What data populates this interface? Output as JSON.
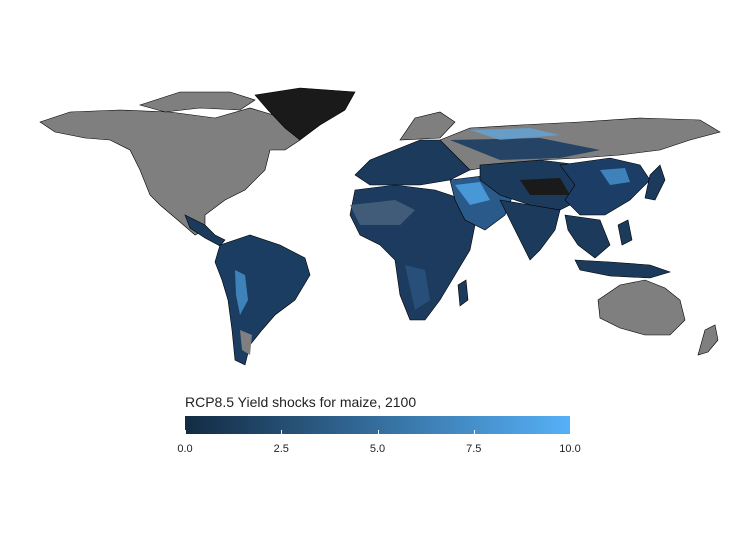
{
  "legend": {
    "title": "RCP8.5 Yield shocks for maize, 2100",
    "ticks": [
      "0.0",
      "2.5",
      "5.0",
      "7.5",
      "10.0"
    ],
    "min": 0,
    "max": 10,
    "color_low": "#132b43",
    "color_high": "#56b1f7"
  },
  "colors": {
    "no_data_land": "#7f7f7f",
    "greenland": "#1a1a1a",
    "border": "#000000",
    "background": "#ffffff"
  }
}
